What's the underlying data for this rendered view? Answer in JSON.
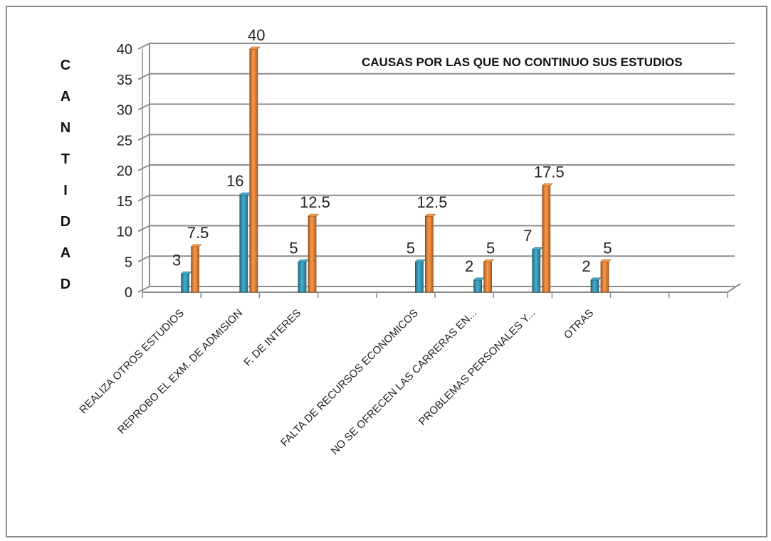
{
  "chart_data": {
    "type": "bar",
    "title": "CAUSAS POR LAS QUE NO CONTINUO SUS  ESTUDIOS",
    "ylabel": "CANTIDAD",
    "xlabel": "",
    "ylim": [
      0,
      40
    ],
    "yticks": [
      "0",
      "5",
      "10",
      "15",
      "20",
      "25",
      "30",
      "35",
      "40"
    ],
    "categories": [
      "REALIZA OTROS ESTUDIOS",
      "REPROBO EL EXM. DE ADMISION",
      "F. DE INTERES",
      "",
      "FALTA DE RECURSOS ECONOMICOS",
      "NO SE OFRECEN LAS CARRERAS EN...",
      "PROBLEMAS PERSONALES Y...",
      "OTRAS",
      "",
      ""
    ],
    "series": [
      {
        "color": "#3a98b4",
        "values": [
          3,
          16,
          5,
          null,
          5,
          2,
          7,
          2,
          null,
          null
        ],
        "labels": [
          "3",
          "16",
          "5",
          "",
          "5",
          "2",
          "7",
          "2",
          "",
          ""
        ]
      },
      {
        "color": "#e8843a",
        "values": [
          7.5,
          40,
          12.5,
          null,
          12.5,
          5,
          17.5,
          5,
          null,
          null
        ],
        "labels": [
          "7.5",
          "40",
          "12.5",
          "",
          "12.5",
          "5",
          "17.5",
          "5",
          "",
          ""
        ]
      }
    ],
    "grid": true,
    "legend": "none"
  }
}
